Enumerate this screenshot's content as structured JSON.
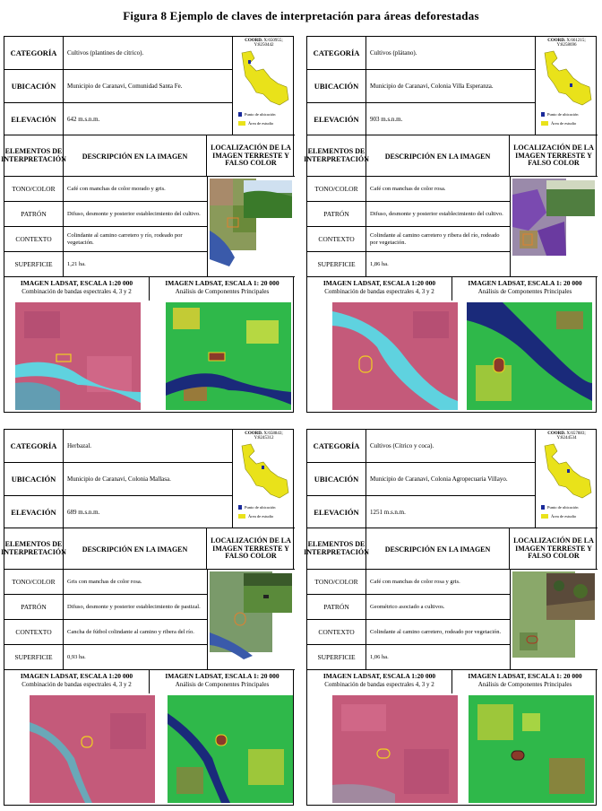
{
  "title": "Figura 8 Ejemplo de claves de interpretación para áreas deforestadas",
  "labels": {
    "categoria": "CATEGORÍA",
    "ubicacion": "UBICACIÓN",
    "elevacion": "ELEVACIÓN",
    "elementos": "ELEMENTOS DE INTERPRETACIÓN",
    "descripcion": "DESCRIPCIÓN EN LA IMAGEN",
    "localizacion": "LOCALIZACIÓN DE LA IMAGEN TERRESTE Y FALSO COLOR",
    "tono": "TONO/COLOR",
    "patron": "PATRÓN",
    "contexto": "CONTEXTO",
    "superficie": "SUPERFICIE",
    "landsat_title": "IMAGEN LADSAT, ESCALA 1:20 000",
    "landsat_sub": "Combinación de bandas espectrales 4, 3 y 2",
    "pca_title": "IMAGEN LADSAT, ESCALA 1: 20 000",
    "pca_sub": "Análisis de Componentes Principales",
    "legend_point": "Punto de ubicación",
    "legend_area": "Área de estudio"
  },
  "colors": {
    "study_area": "#e9e21a",
    "false_color_bg": "#c45a7a",
    "pca_green": "#2fb84a",
    "river_cyan": "#5fd2df",
    "river_navy": "#1a2a7a"
  },
  "cards": [
    {
      "coord_label": "COORD.",
      "coord": "X:650955; Y:8250442",
      "categoria": "Cultivos (plantines de cítrico).",
      "ubicacion": "Municipio de Caranavi, Comunidad Santa Fe.",
      "elevacion": "642 m.s.n.m.",
      "tono": "Café con manchas de color morado y gris.",
      "patron": "Difuso, desmonte y posterior establecimiento del cultivo.",
      "contexto": "Colindante al camino carretero y río, rodeado por vegetación.",
      "superficie": "1,21 ha."
    },
    {
      "coord_label": "COORD.",
      "coord": "X:661215; Y:8258696",
      "categoria": "Cultivos (plátano).",
      "ubicacion": "Municipio de Caranavi, Colonia Villa Esperanza.",
      "elevacion": "903 m.s.n.m.",
      "tono": "Café con manchas de color rosa.",
      "patron": "Difuso, desmonte y posterior establecimiento del cultivo.",
      "contexto": "Colindante al camino carretero y ribera del río, rodeado por vegetación.",
      "superficie": "1,86 ha."
    },
    {
      "coord_label": "COORD.",
      "coord": "X:658843; Y:8245312",
      "categoria": "Herbazal.",
      "ubicacion": "Municipio de Caranavi, Colonia Mallasa.",
      "elevacion": "689 m.s.n.m.",
      "tono": "Gris con manchas de color rosa.",
      "patron": "Difuso, desmonte y posterior establecimiento de pastizal.",
      "contexto": "Cancha de fútbol colindante al camino y ribera del río.",
      "superficie": "0,93 ha."
    },
    {
      "coord_label": "COORD.",
      "coord": "X:657883; Y:8244534",
      "categoria": "Cultivos (Cítrico y coca).",
      "ubicacion": "Municipio de Caranavi, Colonia Agropecuaria Villayo.",
      "elevacion": "1251 m.s.n.m.",
      "tono": "Café con manchas de color rosa y gris.",
      "patron": "Geométrico asociado a cultivos.",
      "contexto": "Colindante al camino carretero, rodeado por vegetación.",
      "superficie": "1,06 ha."
    }
  ]
}
